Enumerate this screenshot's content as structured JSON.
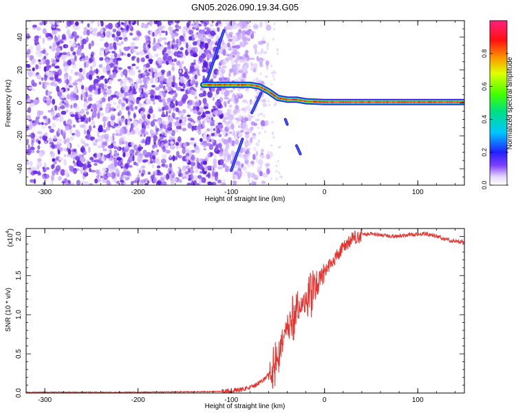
{
  "title": "GN05.2026.090.19.34.G05",
  "chart_data": [
    {
      "type": "heatmap",
      "xlabel": "Height of straight line (km)",
      "ylabel": "Frequency (Hz)",
      "xlim": [
        -320,
        150
      ],
      "ylim": [
        -50,
        50
      ],
      "xticks": [
        -300,
        -200,
        -100,
        0,
        100
      ],
      "yticks": [
        -40,
        -20,
        0,
        20,
        40
      ],
      "colorbar": {
        "label": "Normalized spectral amplitude",
        "ticks": [
          "0.0",
          "0.2",
          "0.4",
          "0.6",
          "0.8"
        ],
        "range": [
          0,
          1
        ]
      },
      "noise_region_x": [
        -320,
        -80
      ],
      "signal_trace": [
        {
          "x": -130,
          "y": 11
        },
        {
          "x": -110,
          "y": 11
        },
        {
          "x": -90,
          "y": 11
        },
        {
          "x": -80,
          "y": 11
        },
        {
          "x": -70,
          "y": 10
        },
        {
          "x": -60,
          "y": 7
        },
        {
          "x": -50,
          "y": 3
        },
        {
          "x": -40,
          "y": 2
        },
        {
          "x": -30,
          "y": 2
        },
        {
          "x": -20,
          "y": 1
        },
        {
          "x": 0,
          "y": 0.5
        },
        {
          "x": 100,
          "y": 0.5
        },
        {
          "x": 150,
          "y": 0.5
        }
      ],
      "branches": [
        {
          "x": [
            -128,
            -108
          ],
          "y": [
            10,
            44
          ]
        },
        {
          "x": [
            -100,
            -88
          ],
          "y": [
            -41,
            -22
          ]
        },
        {
          "x": [
            -78,
            -68
          ],
          "y": [
            -6,
            6
          ]
        },
        {
          "x": [
            -42,
            -40
          ],
          "y": [
            -10,
            -13
          ]
        },
        {
          "x": [
            -30,
            -26
          ],
          "y": [
            -26,
            -31
          ]
        }
      ]
    },
    {
      "type": "line",
      "xlabel": "Height of straight line (km)",
      "ylabel": "SNR (10 * v/v)",
      "yscale_label": "(x10",
      "yscale_exponent": "4",
      "xlim": [
        -320,
        150
      ],
      "ylim": [
        0.0,
        2.1
      ],
      "xticks": [
        -300,
        -200,
        -100,
        0,
        100
      ],
      "yticks": [
        "0.0",
        "0.5",
        "1.0",
        "1.5",
        "2.0"
      ],
      "color": "#e8322d",
      "series": [
        {
          "x": [
            -320,
            -200,
            -110,
            -90,
            -75,
            -65,
            -55,
            -50,
            -45,
            -40,
            -35,
            -30,
            -25,
            -20,
            -15,
            -10,
            -5,
            0,
            10,
            20,
            30,
            40,
            50,
            60,
            70,
            80,
            90,
            100,
            110,
            120,
            130,
            140,
            150
          ],
          "values": [
            0.01,
            0.01,
            0.02,
            0.04,
            0.09,
            0.17,
            0.32,
            0.5,
            0.68,
            0.85,
            0.95,
            1.05,
            1.1,
            1.15,
            1.25,
            1.35,
            1.45,
            1.55,
            1.7,
            1.85,
            1.97,
            2.02,
            2.03,
            2.02,
            2.0,
            2.01,
            2.02,
            2.03,
            2.03,
            2.0,
            1.96,
            1.94,
            1.93
          ]
        }
      ]
    }
  ]
}
